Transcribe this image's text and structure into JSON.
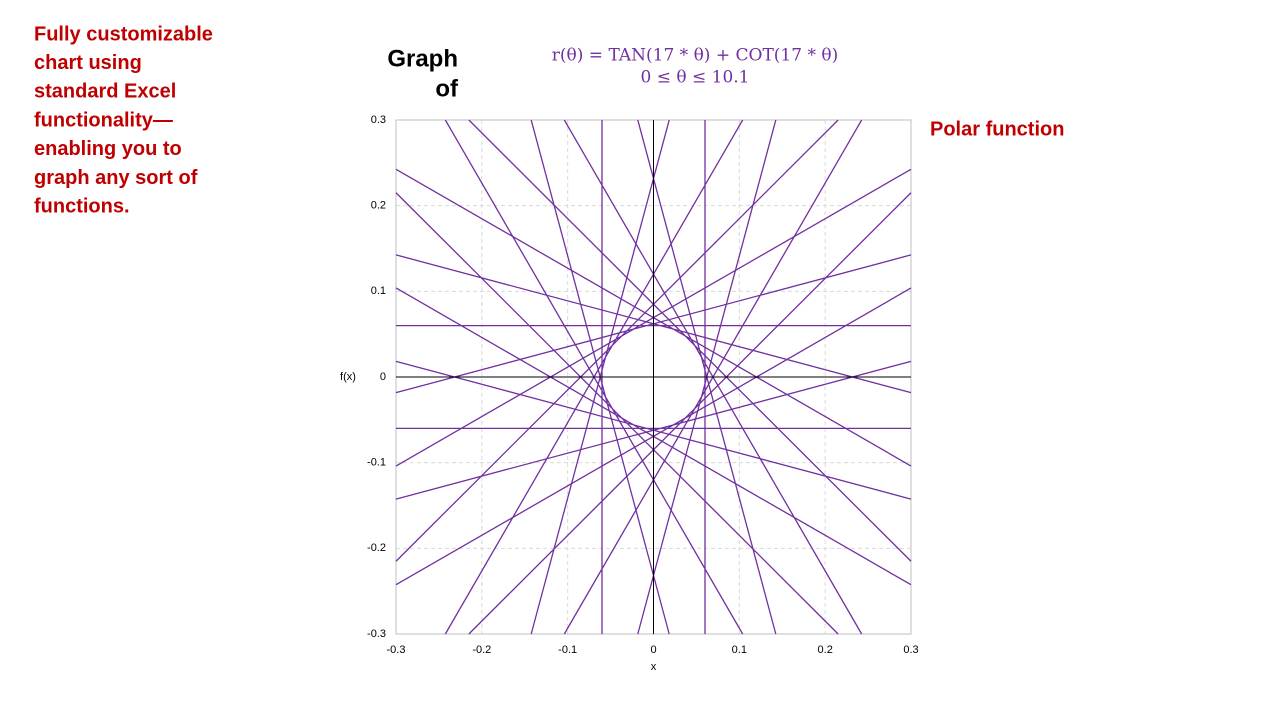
{
  "side_note": [
    "Fully customizable",
    "chart using",
    "standard Excel",
    "functionality—",
    "enabling you to",
    "graph any sort of",
    "functions."
  ],
  "label": "Polar function",
  "chart_data": {
    "type": "line",
    "title": [
      "Graph",
      "of"
    ],
    "subtitle": [
      "r(θ) = TAN(17 * θ) + COT(17 * θ)",
      "0 ≤ θ ≤ 10.1"
    ],
    "x_label": "x",
    "y_label": "f(x)",
    "xlim": [
      -0.3,
      0.3
    ],
    "ylim": [
      -0.3,
      0.3
    ],
    "xticks": [
      -0.3,
      -0.2,
      -0.1,
      0,
      0.1,
      0.2,
      0.3
    ],
    "yticks": [
      -0.3,
      -0.2,
      -0.1,
      0,
      0.1,
      0.2,
      0.3
    ],
    "grid": true,
    "series": [
      {
        "color": "#7030a0",
        "x": [
          0.06,
          0.06,
          null,
          -0.06,
          -0.06,
          null,
          -0.3,
          0.3,
          null,
          -0.3,
          0.3,
          null,
          -0.2151,
          0.3,
          null,
          0.2151,
          -0.3,
          null,
          -0.3,
          0.2151,
          null,
          -0.2151,
          0.3,
          null,
          -0.1039,
          0.2425,
          null,
          -0.2425,
          0.1039,
          null,
          0.3,
          -0.3,
          null,
          0.3,
          -0.3,
          null,
          -0.0183,
          0.1425,
          null,
          -0.1425,
          0.0183,
          null,
          0.3,
          -0.3,
          null,
          0.3,
          -0.3,
          null,
          -0.3,
          0.3,
          null,
          -0.3,
          0.3,
          null,
          -0.3,
          0.3,
          null,
          -0.3,
          0.3,
          null,
          0.1039,
          -0.2425,
          null,
          0.2425,
          -0.1039,
          null,
          0.0183,
          -0.1425,
          null,
          0.1425,
          -0.0183
        ],
        "y": [
          -0.3,
          0.3,
          null,
          -0.3,
          0.3,
          null,
          0.06,
          0.06,
          null,
          -0.06,
          -0.06,
          null,
          0.3,
          -0.2151,
          null,
          -0.3,
          0.2151,
          null,
          -0.2151,
          0.3,
          null,
          -0.3,
          0.2151,
          null,
          0.3,
          -0.3,
          null,
          0.3,
          -0.3,
          null,
          -0.1039,
          0.2425,
          null,
          -0.2425,
          0.1039,
          null,
          0.3,
          -0.3,
          null,
          0.3,
          -0.3,
          null,
          -0.0183,
          0.1425,
          null,
          -0.1425,
          0.0183,
          null,
          -0.0183,
          0.1425,
          null,
          -0.1425,
          0.0183,
          null,
          -0.1039,
          0.2425,
          null,
          -0.2425,
          0.1039,
          null,
          0.3,
          -0.3,
          null,
          0.3,
          -0.3,
          null,
          0.3,
          -0.3,
          null,
          0.3,
          -0.3
        ]
      }
    ]
  }
}
